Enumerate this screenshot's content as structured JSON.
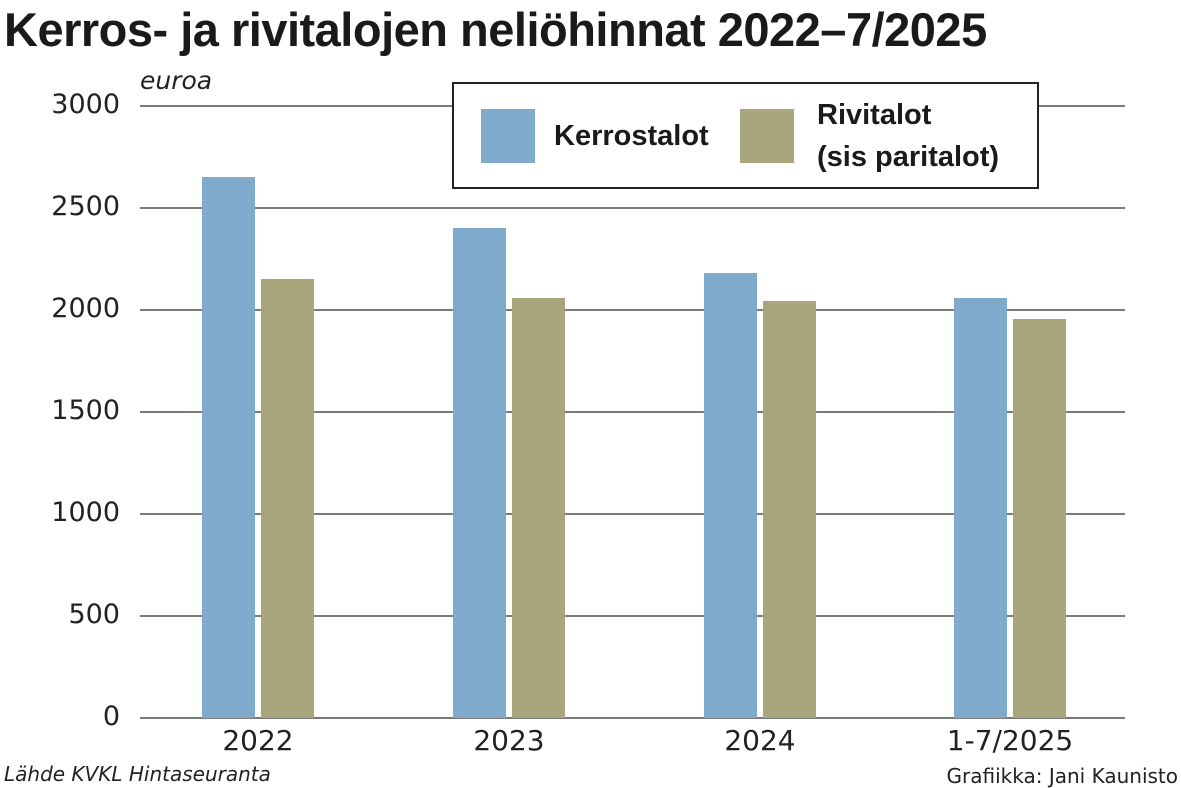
{
  "header": {
    "title": "Kerros- ja rivitalojen neliöhinnat 2022–7/2025"
  },
  "footer": {
    "source": "Lähde KVKL Hintaseuranta",
    "credit": "Grafiikka: Jani Kaunisto"
  },
  "legend": {
    "items": [
      {
        "label": "Kerrostalot",
        "color": "#80aacc"
      },
      {
        "label_line1": "Rivitalot",
        "label_line2": "(sis paritalot)",
        "color": "#a9a67c"
      }
    ]
  },
  "axis": {
    "y_unit": "euroa",
    "y_ticks": [
      "3000",
      "2500",
      "2000",
      "1500",
      "1000",
      "500",
      "0"
    ],
    "x_ticks": [
      "2022",
      "2023",
      "2024",
      "1-7/2025"
    ]
  },
  "chart_data": {
    "type": "bar",
    "title": "Kerros- ja rivitalojen neliöhinnat 2022–7/2025",
    "xlabel": "",
    "ylabel": "euroa",
    "ylim": [
      0,
      3000
    ],
    "yticks": [
      0,
      500,
      1000,
      1500,
      2000,
      2500,
      3000
    ],
    "grid": true,
    "legend_position": "top-right",
    "categories": [
      "2022",
      "2023",
      "2024",
      "1-7/2025"
    ],
    "series": [
      {
        "name": "Kerrostalot",
        "color": "#80aacc",
        "values": [
          2650,
          2400,
          2180,
          2060
        ]
      },
      {
        "name": "Rivitalot (sis paritalot)",
        "color": "#a9a67c",
        "values": [
          2150,
          2060,
          2045,
          1955
        ]
      }
    ],
    "annotations": [
      "Lähde KVKL Hintaseuranta",
      "Grafiikka: Jani Kaunisto"
    ]
  }
}
